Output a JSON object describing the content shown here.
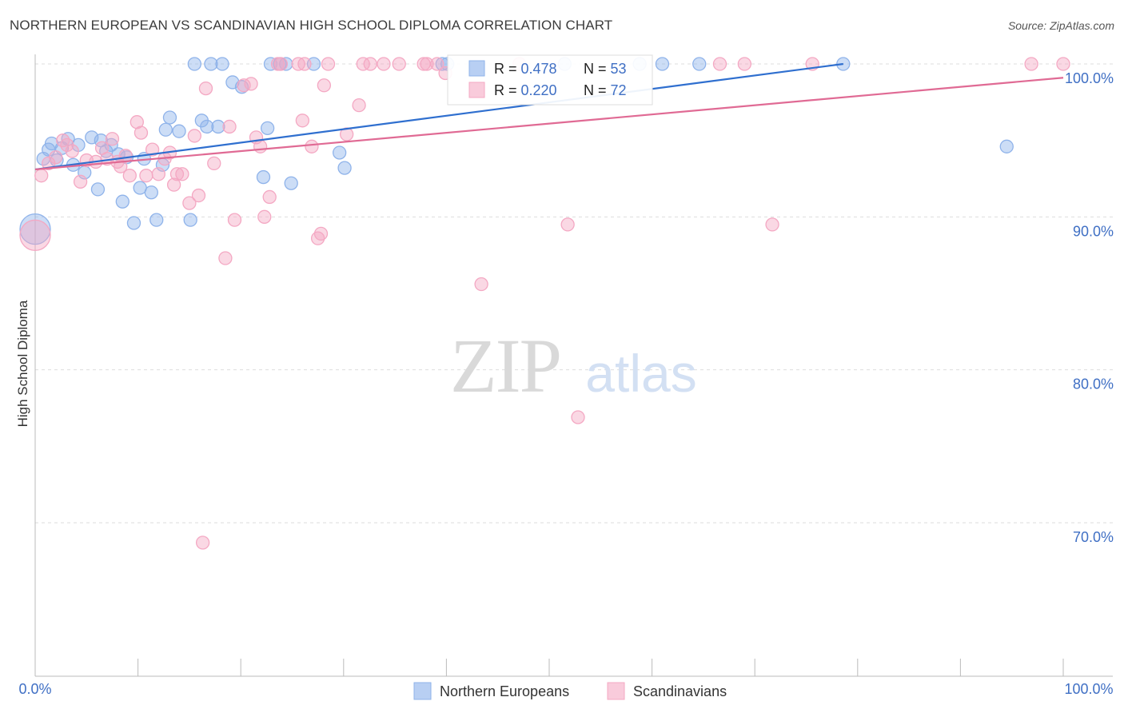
{
  "header": {
    "title": "NORTHERN EUROPEAN VS SCANDINAVIAN HIGH SCHOOL DIPLOMA CORRELATION CHART",
    "source": "Source: ZipAtlas.com"
  },
  "colors": {
    "blue": "#8fb3ea",
    "blue_line": "#2f6fcf",
    "pink": "#f4a8c3",
    "pink_line": "#e06a94",
    "axis_value": "#3f6fc4",
    "grid": "#dddddd"
  },
  "chart_data": {
    "type": "scatter",
    "title": "NORTHERN EUROPEAN VS SCANDINAVIAN HIGH SCHOOL DIPLOMA CORRELATION CHART",
    "ylabel": "High School Diploma",
    "xlabel": "",
    "xlim": [
      0,
      100
    ],
    "ylim": [
      60,
      103
    ],
    "x_tick_labels": [
      "0.0%",
      "100.0%"
    ],
    "y_ticks": [
      70,
      80,
      90,
      100
    ],
    "y_tick_labels": [
      "70.0%",
      "80.0%",
      "90.0%",
      "100.0%"
    ],
    "grid": true,
    "legend_position": "bottom",
    "watermark": "ZIPatlas",
    "stats": [
      {
        "r_label": "R = ",
        "r": "0.478",
        "n_label": "N = ",
        "n": "53"
      },
      {
        "r_label": "R = ",
        "r": "0.220",
        "n_label": "N = ",
        "n": "72"
      }
    ],
    "series": [
      {
        "name": "Northern Europeans",
        "trend": {
          "x": [
            0,
            78.6
          ],
          "y": [
            93.1,
            100.0
          ]
        },
        "points": [
          [
            0.0,
            89.2,
            3
          ],
          [
            0.8,
            93.8,
            1
          ],
          [
            1.3,
            94.4,
            1
          ],
          [
            1.6,
            94.8,
            1
          ],
          [
            2.1,
            93.7,
            1
          ],
          [
            2.6,
            94.5,
            1
          ],
          [
            3.2,
            95.1,
            1
          ],
          [
            3.7,
            93.4,
            1
          ],
          [
            4.2,
            94.7,
            1
          ],
          [
            4.8,
            92.9,
            1
          ],
          [
            5.5,
            95.2,
            1
          ],
          [
            6.1,
            91.8,
            1
          ],
          [
            6.4,
            95.0,
            1
          ],
          [
            6.9,
            94.3,
            1
          ],
          [
            7.4,
            94.7,
            1
          ],
          [
            8.1,
            94.1,
            1
          ],
          [
            8.5,
            91.0,
            1
          ],
          [
            8.9,
            93.9,
            1
          ],
          [
            9.6,
            89.6,
            1
          ],
          [
            10.2,
            91.9,
            1
          ],
          [
            10.6,
            93.8,
            1
          ],
          [
            11.3,
            91.6,
            1
          ],
          [
            11.8,
            89.8,
            1
          ],
          [
            12.4,
            93.4,
            1
          ],
          [
            12.7,
            95.7,
            1
          ],
          [
            13.1,
            96.5,
            1
          ],
          [
            14.0,
            95.6,
            1
          ],
          [
            15.1,
            89.8,
            1
          ],
          [
            15.5,
            100.0,
            1
          ],
          [
            16.2,
            96.3,
            1
          ],
          [
            16.7,
            95.9,
            1
          ],
          [
            17.1,
            100.0,
            1
          ],
          [
            17.8,
            95.9,
            1
          ],
          [
            18.2,
            100.0,
            1
          ],
          [
            19.2,
            98.8,
            1
          ],
          [
            20.1,
            98.5,
            1
          ],
          [
            22.2,
            92.6,
            1
          ],
          [
            22.6,
            95.8,
            1
          ],
          [
            22.9,
            100.0,
            1
          ],
          [
            23.8,
            100.0,
            1
          ],
          [
            24.4,
            100.0,
            1
          ],
          [
            24.9,
            92.2,
            1
          ],
          [
            27.1,
            100.0,
            1
          ],
          [
            29.6,
            94.2,
            1
          ],
          [
            30.1,
            93.2,
            1
          ],
          [
            39.6,
            100.0,
            1
          ],
          [
            40.1,
            100.0,
            1
          ],
          [
            51.5,
            100.0,
            1
          ],
          [
            58.8,
            100.0,
            1
          ],
          [
            61.0,
            100.0,
            1
          ],
          [
            64.6,
            100.0,
            1
          ],
          [
            78.6,
            100.0,
            1
          ],
          [
            94.5,
            94.6,
            1
          ]
        ]
      },
      {
        "name": "Scandinavians",
        "trend": {
          "x": [
            0,
            100
          ],
          "y": [
            93.1,
            99.1
          ]
        },
        "points": [
          [
            0.0,
            88.8,
            3
          ],
          [
            0.6,
            92.7,
            1
          ],
          [
            1.3,
            93.5,
            1
          ],
          [
            2.0,
            93.9,
            1
          ],
          [
            2.7,
            95.0,
            1
          ],
          [
            3.1,
            94.7,
            1
          ],
          [
            3.6,
            94.3,
            1
          ],
          [
            4.4,
            92.3,
            1
          ],
          [
            5.0,
            93.7,
            1
          ],
          [
            5.9,
            93.6,
            1
          ],
          [
            6.5,
            94.5,
            1
          ],
          [
            7.0,
            93.8,
            1
          ],
          [
            7.5,
            95.1,
            1
          ],
          [
            8.0,
            93.6,
            1
          ],
          [
            8.3,
            93.3,
            1
          ],
          [
            8.8,
            94.0,
            1
          ],
          [
            9.2,
            92.7,
            1
          ],
          [
            9.9,
            96.2,
            1
          ],
          [
            10.3,
            95.5,
            1
          ],
          [
            10.8,
            92.7,
            1
          ],
          [
            11.4,
            94.4,
            1
          ],
          [
            12.0,
            92.8,
            1
          ],
          [
            12.6,
            93.8,
            1
          ],
          [
            13.1,
            94.2,
            1
          ],
          [
            13.5,
            92.1,
            1
          ],
          [
            13.8,
            92.8,
            1
          ],
          [
            14.3,
            92.8,
            1
          ],
          [
            15.0,
            90.9,
            1
          ],
          [
            15.5,
            95.3,
            1
          ],
          [
            15.9,
            91.4,
            1
          ],
          [
            16.3,
            68.7,
            1
          ],
          [
            16.6,
            98.4,
            1
          ],
          [
            17.4,
            93.5,
            1
          ],
          [
            18.5,
            87.3,
            1
          ],
          [
            18.9,
            95.9,
            1
          ],
          [
            19.4,
            89.8,
            1
          ],
          [
            20.3,
            98.6,
            1
          ],
          [
            21.0,
            98.7,
            1
          ],
          [
            21.5,
            95.2,
            1
          ],
          [
            21.9,
            94.6,
            1
          ],
          [
            22.3,
            90.0,
            1
          ],
          [
            22.8,
            91.3,
            1
          ],
          [
            23.6,
            100.0,
            1
          ],
          [
            23.9,
            100.0,
            1
          ],
          [
            25.6,
            100.0,
            1
          ],
          [
            26.0,
            96.3,
            1
          ],
          [
            26.2,
            100.0,
            1
          ],
          [
            26.9,
            94.6,
            1
          ],
          [
            27.5,
            88.6,
            1
          ],
          [
            27.8,
            88.9,
            1
          ],
          [
            28.1,
            98.6,
            1
          ],
          [
            28.5,
            100.0,
            1
          ],
          [
            30.3,
            95.4,
            1
          ],
          [
            31.5,
            97.3,
            1
          ],
          [
            31.9,
            100.0,
            1
          ],
          [
            32.6,
            100.0,
            1
          ],
          [
            33.9,
            100.0,
            1
          ],
          [
            35.4,
            100.0,
            1
          ],
          [
            37.8,
            100.0,
            1
          ],
          [
            38.1,
            100.0,
            1
          ],
          [
            39.1,
            100.0,
            1
          ],
          [
            39.9,
            99.4,
            1
          ],
          [
            43.4,
            85.6,
            1
          ],
          [
            47.1,
            100.0,
            1
          ],
          [
            51.8,
            89.5,
            1
          ],
          [
            52.8,
            76.9,
            1
          ],
          [
            66.6,
            100.0,
            1
          ],
          [
            69.0,
            100.0,
            1
          ],
          [
            71.7,
            89.5,
            1
          ],
          [
            75.6,
            100.0,
            1
          ],
          [
            96.9,
            100.0,
            1
          ],
          [
            100.0,
            100.0,
            1
          ]
        ]
      }
    ]
  }
}
